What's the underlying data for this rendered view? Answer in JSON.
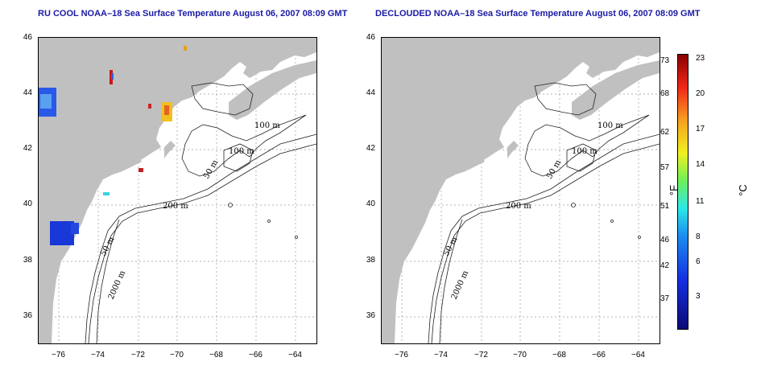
{
  "left_panel": {
    "title": "RU COOL NOAA–18 Sea Surface Temperature August 06, 2007 08:09 GMT",
    "contour_labels": [
      "100 m",
      "100 m",
      "50 m",
      "200 m",
      "50 m",
      "2000 m"
    ]
  },
  "right_panel": {
    "title": "DECLOUDED NOAA–18 Sea Surface Temperature August 06, 2007 08:09 GMT",
    "contour_labels": [
      "100 m",
      "100 m",
      "50 m",
      "200 m",
      "50 m",
      "2000 m"
    ]
  },
  "axes": {
    "x_ticks": [
      "−76",
      "−74",
      "−72",
      "−70",
      "−68",
      "−66",
      "−64"
    ],
    "y_ticks": [
      "46",
      "44",
      "42",
      "40",
      "38",
      "36"
    ]
  },
  "colorbar": {
    "fahrenheit_label": "°F",
    "celsius_label": "°C",
    "fahrenheit_ticks": [
      "73",
      "68",
      "62",
      "57",
      "51",
      "46",
      "42",
      "37"
    ],
    "celsius_ticks": [
      "23",
      "20",
      "17",
      "14",
      "11",
      "8",
      "6",
      "3"
    ]
  },
  "colors": {
    "land": "#c0c0c0",
    "title": "#1a1aa6",
    "grid": "#999999"
  }
}
